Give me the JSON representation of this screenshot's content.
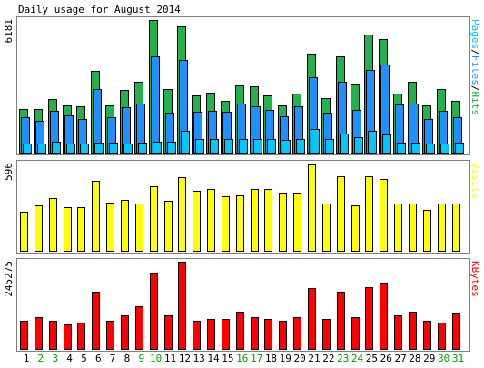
{
  "chart_data": {
    "type": "bar",
    "title": "Daily usage for August 2014",
    "days": [
      "1",
      "2",
      "3",
      "4",
      "5",
      "6",
      "7",
      "8",
      "9",
      "10",
      "11",
      "12",
      "13",
      "14",
      "15",
      "16",
      "17",
      "18",
      "19",
      "20",
      "21",
      "22",
      "23",
      "24",
      "25",
      "26",
      "27",
      "28",
      "29",
      "30",
      "31"
    ],
    "weekend_days": [
      "2",
      "3",
      "9",
      "10",
      "16",
      "17",
      "23",
      "24",
      "30",
      "31"
    ],
    "colors": {
      "hits": "#22b14c",
      "files": "#1e90ff",
      "pages": "#00c8ff",
      "visits": "#ffff00",
      "kbytes": "#ff0000",
      "weekday_label": "#000000",
      "weekend_label": "#00a000",
      "panel_border": "#808080",
      "panel_bg": "#ffffff"
    },
    "panels": [
      {
        "id": "usage",
        "max_label": "6181",
        "ymax": 6181,
        "right_label_parts": [
          {
            "text": "Pages",
            "color": "#00c8ff"
          },
          {
            "text": "/",
            "color": "#000000"
          },
          {
            "text": "Files",
            "color": "#1e90ff"
          },
          {
            "text": "/",
            "color": "#000000"
          },
          {
            "text": "Hits",
            "color": "#22b14c"
          }
        ],
        "series": [
          {
            "name": "Hits",
            "color": "#22b14c",
            "values": [
              2050,
              2050,
              2500,
              2200,
              2150,
              3800,
              2200,
              2900,
              3300,
              6181,
              2950,
              5900,
              2650,
              2800,
              2400,
              3150,
              3100,
              2650,
              2200,
              2750,
              4600,
              2550,
              4500,
              3200,
              5500,
              5300,
              2750,
              3300,
              2200,
              2950,
              2400
            ]
          },
          {
            "name": "Files",
            "color": "#1e90ff",
            "values": [
              1650,
              1500,
              1950,
              1750,
              1550,
              2950,
              1650,
              2100,
              2300,
              4500,
              1850,
              4300,
              1900,
              1950,
              1900,
              2300,
              2150,
              2000,
              1700,
              2150,
              3500,
              1850,
              3300,
              2000,
              3850,
              4100,
              2250,
              2300,
              1550,
              1950,
              1650
            ]
          },
          {
            "name": "Pages",
            "color": "#00c8ff",
            "values": [
              420,
              420,
              500,
              420,
              420,
              480,
              480,
              420,
              480,
              520,
              500,
              1000,
              620,
              620,
              620,
              620,
              620,
              620,
              580,
              620,
              1100,
              620,
              900,
              700,
              1000,
              850,
              480,
              480,
              420,
              420,
              480
            ]
          }
        ]
      },
      {
        "id": "visits",
        "max_label": "596",
        "ymax": 596,
        "right_label_parts": [
          {
            "text": "Visits",
            "color": "#ffff00"
          }
        ],
        "series": [
          {
            "name": "Visits",
            "color": "#ffff00",
            "values": [
              270,
              310,
              360,
              300,
              300,
              480,
              330,
              350,
              320,
              440,
              340,
              500,
              410,
              420,
              370,
              380,
              420,
              420,
              400,
              400,
              590,
              320,
              510,
              310,
              510,
              490,
              320,
              320,
              280,
              320,
              320
            ]
          }
        ]
      },
      {
        "id": "kbytes",
        "max_label": "245275",
        "ymax": 245275,
        "right_label_parts": [
          {
            "text": "KBytes",
            "color": "#ff0000"
          }
        ],
        "series": [
          {
            "name": "KBytes",
            "color": "#ff0000",
            "values": [
              80000,
              90000,
              80000,
              70000,
              75000,
              160000,
              80000,
              95000,
              120000,
              215000,
              95000,
              245000,
              80000,
              85000,
              85000,
              105000,
              90000,
              85000,
              80000,
              90000,
              170000,
              85000,
              160000,
              90000,
              175000,
              185000,
              95000,
              105000,
              80000,
              75000,
              100000
            ]
          }
        ]
      }
    ]
  }
}
